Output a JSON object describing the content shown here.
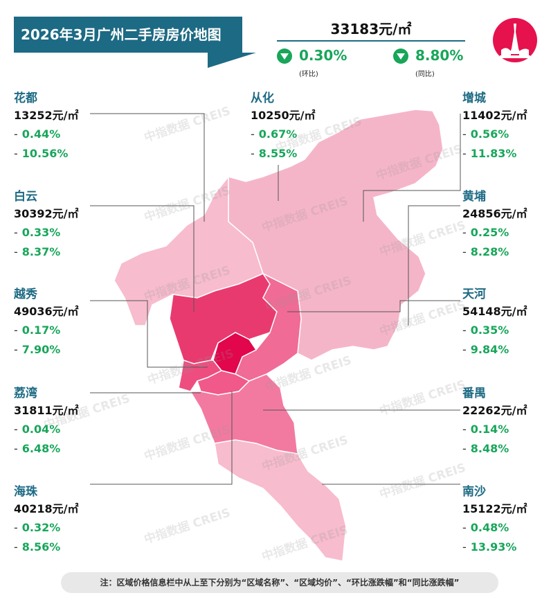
{
  "title": "2026年3月广州二手房房价地图",
  "summary": {
    "price": "33183元/㎡",
    "mom": {
      "value": "0.30%",
      "label": "(环比)",
      "direction": "down"
    },
    "yoy": {
      "value": "8.80%",
      "label": "(同比)",
      "direction": "down"
    }
  },
  "districts": {
    "huadu": {
      "name": "花都",
      "price": "13252元/㎡",
      "mom": "0.44%",
      "yoy": "10.56%"
    },
    "conghua": {
      "name": "从化",
      "price": "10250元/㎡",
      "mom": "0.67%",
      "yoy": "8.55%"
    },
    "zengcheng": {
      "name": "增城",
      "price": "11402元/㎡",
      "mom": "0.56%",
      "yoy": "11.83%"
    },
    "baiyun": {
      "name": "白云",
      "price": "30392元/㎡",
      "mom": "0.33%",
      "yoy": "8.37%"
    },
    "huangpu": {
      "name": "黄埔",
      "price": "24856元/㎡",
      "mom": "0.25%",
      "yoy": "8.28%"
    },
    "yuexiu": {
      "name": "越秀",
      "price": "49036元/㎡",
      "mom": "0.17%",
      "yoy": "7.90%"
    },
    "tianhe": {
      "name": "天河",
      "price": "54148元/㎡",
      "mom": "0.35%",
      "yoy": "9.84%"
    },
    "liwan": {
      "name": "荔湾",
      "price": "31811元/㎡",
      "mom": "0.04%",
      "yoy": "6.48%"
    },
    "panyu": {
      "name": "番禺",
      "price": "22262元/㎡",
      "mom": "0.14%",
      "yoy": "8.48%"
    },
    "haizhu": {
      "name": "海珠",
      "price": "40218元/㎡",
      "mom": "0.32%",
      "yoy": "8.56%"
    },
    "nansha": {
      "name": "南沙",
      "price": "15122元/㎡",
      "mom": "0.48%",
      "yoy": "13.93%"
    }
  },
  "change_prefix": "-",
  "watermark": "中指数据 CREIS",
  "note": "注：区域价格信息栏中从上至下分别为“区域名称”、“区域均价”、“环比涨跌幅”和“同比涨跌幅”",
  "colors": {
    "banner": "#1d6a84",
    "change_text": "#18a65a",
    "district_name": "#1d6a84",
    "badge": "#e5124e",
    "map_light": "#f5b5c8",
    "map_mid_light": "#f7a7c1",
    "map_mid": "#f06b95",
    "map_dark": "#e93a70",
    "map_darkest": "#e2064d"
  },
  "badge_icon": "canton-tower-icon"
}
